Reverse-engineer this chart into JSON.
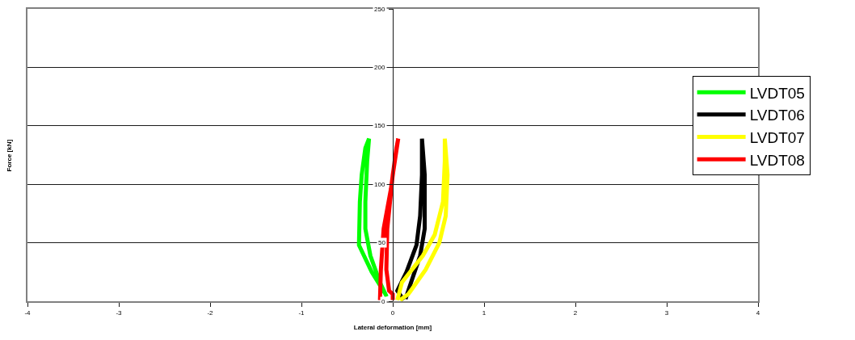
{
  "chart_data": {
    "type": "line",
    "xlabel": "Lateral deformation [mm]",
    "ylabel": "Force [kN]",
    "xlim": [
      -4,
      4
    ],
    "xticks": [
      -4,
      -3,
      -2,
      -1,
      0,
      1,
      2,
      3,
      4
    ],
    "ylim": [
      0,
      250
    ],
    "yticks": [
      0,
      50,
      100,
      150,
      200,
      250
    ],
    "grid": "y",
    "legend": "right",
    "marker": "none",
    "line_style": "solid",
    "series": [
      {
        "name": "LVDT05",
        "color": "#00ff00",
        "x": [
          -0.08,
          -0.23,
          -0.37,
          -0.36,
          -0.34,
          -0.3,
          -0.26,
          -0.28,
          -0.3,
          -0.3,
          -0.245,
          -0.14,
          -0.067
        ],
        "values": [
          6,
          25,
          48,
          85,
          108,
          131,
          139,
          120,
          85,
          62,
          39,
          16,
          4
        ]
      },
      {
        "name": "LVDT06",
        "color": "#000000",
        "x": [
          0.12,
          0.05,
          0.15,
          0.26,
          0.3,
          0.32,
          0.32,
          0.35,
          0.35,
          0.3,
          0.2,
          0.14
        ],
        "values": [
          1,
          9,
          25,
          48,
          73,
          108,
          139,
          108,
          62,
          39,
          16,
          2
        ]
      },
      {
        "name": "LVDT07",
        "color": "#ffff00",
        "x": [
          0.05,
          0.1,
          0.33,
          0.46,
          0.55,
          0.57,
          0.57,
          0.6,
          0.58,
          0.51,
          0.36,
          0.17,
          0.08
        ],
        "values": [
          1,
          16,
          39,
          57,
          85,
          120,
          139,
          108,
          73,
          50,
          27,
          6,
          1
        ]
      },
      {
        "name": "LVDT08",
        "color": "#ff0000",
        "x": [
          -0.14,
          -0.13,
          -0.1,
          -0.02,
          0.04,
          0.06,
          0,
          -0.06,
          -0.07,
          -0.04,
          0,
          0
        ],
        "values": [
          1,
          27,
          62,
          96,
          131,
          139,
          108,
          62,
          27,
          9,
          6,
          1
        ]
      }
    ]
  }
}
